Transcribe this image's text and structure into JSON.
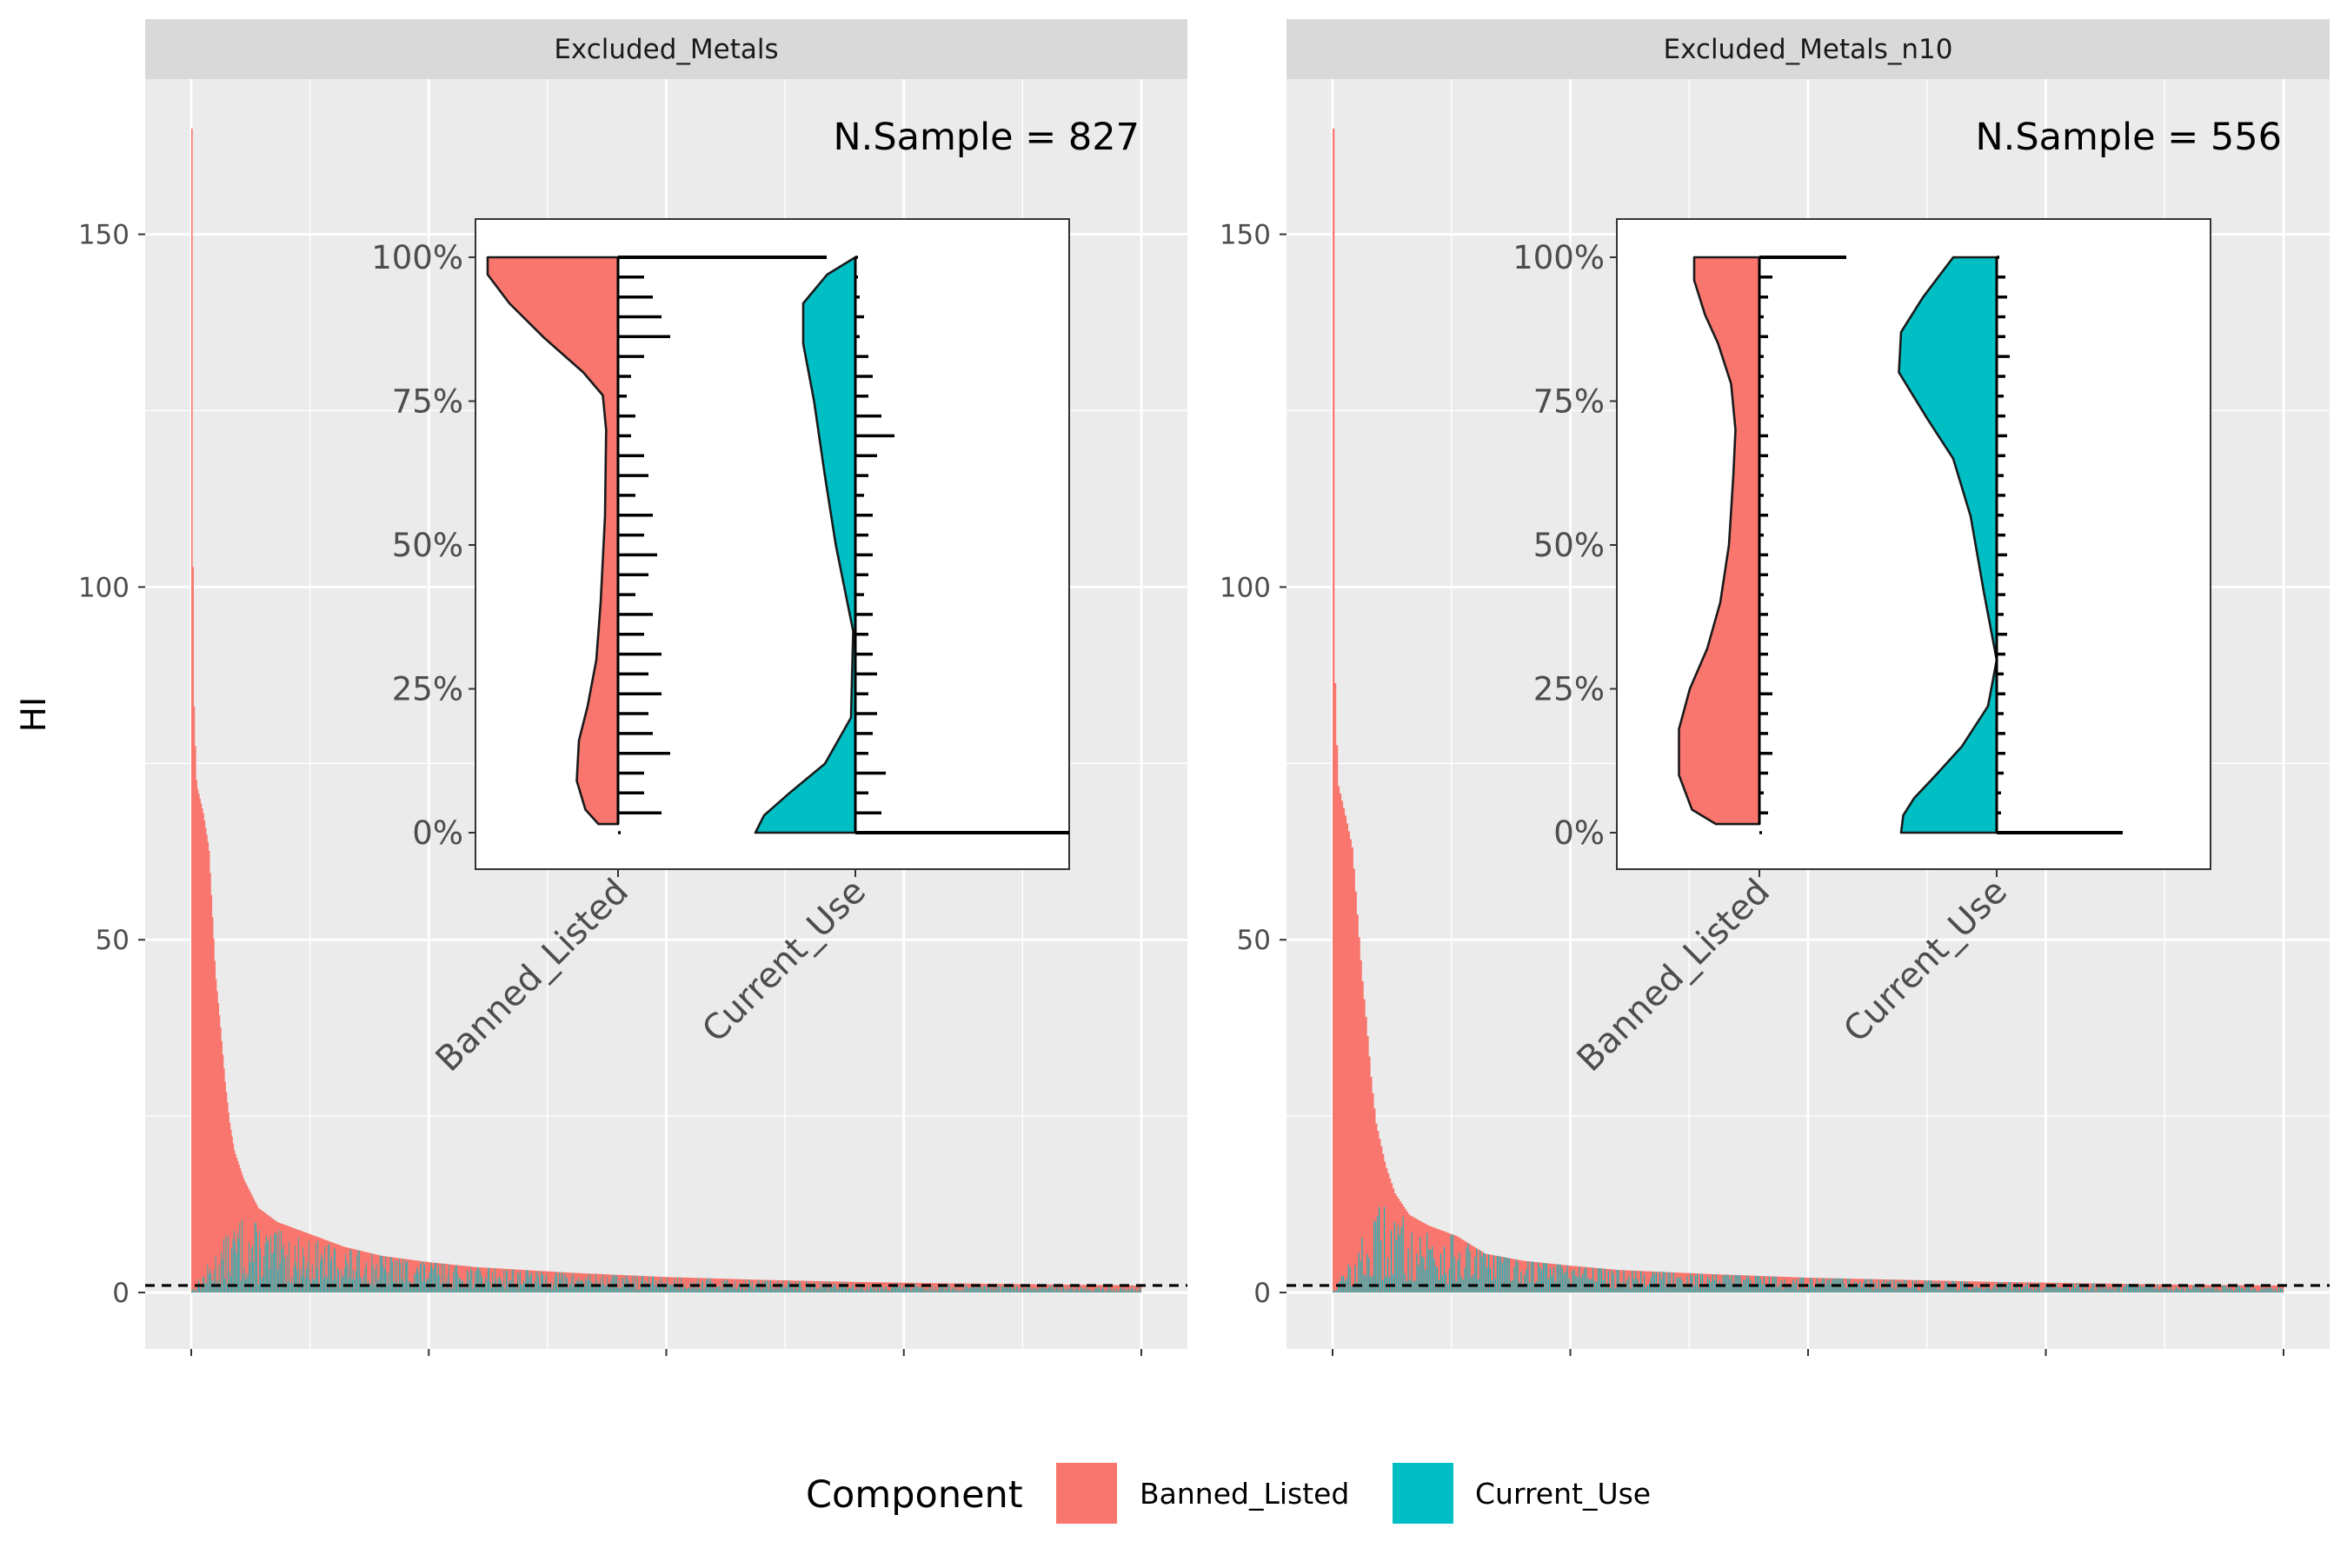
{
  "chart_data": {
    "type": "bar",
    "ylabel": "HI",
    "y_ticks": [
      0,
      50,
      100,
      150
    ],
    "ylim": [
      -8,
      172
    ],
    "reference_line": {
      "y": 1,
      "style": "dashed",
      "color": "#000000"
    },
    "legend": {
      "title": "Component",
      "position": "bottom",
      "entries": [
        {
          "label": "Banned_Listed",
          "color": "#F8766D"
        },
        {
          "label": "Current_Use",
          "color": "#00BFC4"
        }
      ]
    },
    "panels": [
      {
        "strip": "Excluded_Metals",
        "annotation": "N.Sample = 827",
        "n": 827,
        "series": [
          {
            "name": "Banned_Listed",
            "color": "#F8766D",
            "profile": [
              [
                0,
                165
              ],
              [
                0.0015,
                88
              ],
              [
                0.003,
                80
              ],
              [
                0.005,
                72
              ],
              [
                0.012,
                68
              ],
              [
                0.018,
                63
              ],
              [
                0.025,
                45
              ],
              [
                0.03,
                38
              ],
              [
                0.035,
                30
              ],
              [
                0.04,
                24
              ],
              [
                0.045,
                20
              ],
              [
                0.055,
                16
              ],
              [
                0.07,
                12
              ],
              [
                0.09,
                10
              ],
              [
                0.12,
                8.5
              ],
              [
                0.16,
                6.5
              ],
              [
                0.2,
                5.2
              ],
              [
                0.25,
                4.3
              ],
              [
                0.3,
                3.6
              ],
              [
                0.4,
                2.8
              ],
              [
                0.5,
                2.2
              ],
              [
                0.6,
                1.8
              ],
              [
                0.7,
                1.5
              ],
              [
                0.8,
                1.3
              ],
              [
                0.9,
                1.15
              ],
              [
                1.0,
                1.0
              ]
            ]
          },
          {
            "name": "Current_Use",
            "color": "#00BFC4",
            "profile": [
              [
                0,
                0.3
              ],
              [
                0.05,
                8
              ],
              [
                0.1,
                6
              ],
              [
                0.15,
                5
              ],
              [
                0.25,
                3.5
              ],
              [
                0.4,
                2.3
              ],
              [
                0.6,
                1.4
              ],
              [
                0.8,
                0.9
              ],
              [
                1.0,
                0.6
              ]
            ]
          }
        ],
        "inset": {
          "type": "half-violin with quantile ticks",
          "y_ticks": [
            "0%",
            "25%",
            "50%",
            "75%",
            "100%"
          ],
          "categories": [
            "Banned_Listed",
            "Current_Use"
          ],
          "violins": [
            {
              "name": "Banned_Listed",
              "color": "#F8766D",
              "side": "left",
              "ymin": 0.015,
              "ymax": 1.0,
              "density": [
                [
                  0.015,
                  0.09
                ],
                [
                  0.04,
                  0.15
                ],
                [
                  0.09,
                  0.19
                ],
                [
                  0.16,
                  0.18
                ],
                [
                  0.22,
                  0.14
                ],
                [
                  0.3,
                  0.1
                ],
                [
                  0.4,
                  0.08
                ],
                [
                  0.55,
                  0.06
                ],
                [
                  0.7,
                  0.055
                ],
                [
                  0.76,
                  0.07
                ],
                [
                  0.8,
                  0.16
                ],
                [
                  0.86,
                  0.34
                ],
                [
                  0.92,
                  0.5
                ],
                [
                  0.97,
                  0.6
                ],
                [
                  1.0,
                  0.6
                ]
              ]
            },
            {
              "name": "Current_Use",
              "color": "#00BFC4",
              "side": "left",
              "ymin": 0.0,
              "ymax": 1.0,
              "density": [
                [
                  0.0,
                  0.46
                ],
                [
                  0.03,
                  0.42
                ],
                [
                  0.07,
                  0.3
                ],
                [
                  0.12,
                  0.14
                ],
                [
                  0.2,
                  0.02
                ],
                [
                  0.35,
                  0.01
                ],
                [
                  0.5,
                  0.09
                ],
                [
                  0.62,
                  0.14
                ],
                [
                  0.75,
                  0.19
                ],
                [
                  0.85,
                  0.24
                ],
                [
                  0.92,
                  0.24
                ],
                [
                  0.97,
                  0.13
                ],
                [
                  1.0,
                  0.0
                ]
              ]
            }
          ],
          "quantile_ticks": [
            [
              0.0,
              0.5,
              0.3,
              0.3,
              0.6,
              0.4,
              0.35,
              0.5,
              0.35,
              0.5,
              0.3,
              0.4,
              0.2,
              0.35,
              0.45,
              0.3,
              0.4,
              0.2,
              0.35,
              0.3,
              0.15,
              0.2,
              0.1,
              0.15,
              0.3,
              0.6,
              0.5,
              0.4,
              0.3,
              0.2
            ],
            [
              1.0,
              0.3,
              0.15,
              0.35,
              0.15,
              0.2,
              0.25,
              0.15,
              0.25,
              0.2,
              0.15,
              0.2,
              0.1,
              0.15,
              0.2,
              0.15,
              0.2,
              0.1,
              0.15,
              0.25,
              0.45,
              0.3,
              0.15,
              0.2,
              0.15,
              0.05,
              0.1,
              0.05,
              0.0,
              0.0
            ]
          ],
          "end_lines": [
            {
              "y": 1.0,
              "from": 0,
              "to": 2.4
            },
            {
              "y": 0.0,
              "from": 1,
              "to": 3.0
            }
          ]
        }
      },
      {
        "strip": "Excluded_Metals_n10",
        "annotation": "N.Sample = 556",
        "n": 556,
        "series": [
          {
            "name": "Banned_Listed",
            "color": "#F8766D",
            "profile": [
              [
                0,
                165
              ],
              [
                0.0015,
                88
              ],
              [
                0.003,
                80
              ],
              [
                0.005,
                72
              ],
              [
                0.012,
                68
              ],
              [
                0.02,
                63
              ],
              [
                0.03,
                45
              ],
              [
                0.035,
                38
              ],
              [
                0.04,
                30
              ],
              [
                0.045,
                24
              ],
              [
                0.055,
                18
              ],
              [
                0.065,
                14
              ],
              [
                0.08,
                11
              ],
              [
                0.1,
                9.5
              ],
              [
                0.13,
                8
              ],
              [
                0.16,
                5.5
              ],
              [
                0.2,
                4.5
              ],
              [
                0.25,
                3.8
              ],
              [
                0.3,
                3.2
              ],
              [
                0.4,
                2.6
              ],
              [
                0.5,
                2.1
              ],
              [
                0.6,
                1.8
              ],
              [
                0.7,
                1.5
              ],
              [
                0.8,
                1.3
              ],
              [
                0.9,
                1.1
              ],
              [
                1.0,
                1.0
              ]
            ]
          },
          {
            "name": "Current_Use",
            "color": "#00BFC4",
            "profile": [
              [
                0,
                0.3
              ],
              [
                0.05,
                9
              ],
              [
                0.1,
                7
              ],
              [
                0.15,
                5.5
              ],
              [
                0.25,
                4
              ],
              [
                0.4,
                2.6
              ],
              [
                0.6,
                1.6
              ],
              [
                0.8,
                1.1
              ],
              [
                1.0,
                0.8
              ]
            ]
          }
        ],
        "inset": {
          "type": "half-violin with quantile ticks",
          "y_ticks": [
            "0%",
            "25%",
            "50%",
            "75%",
            "100%"
          ],
          "categories": [
            "Banned_Listed",
            "Current_Use"
          ],
          "violins": [
            {
              "name": "Banned_Listed",
              "color": "#F8766D",
              "side": "left",
              "ymin": 0.015,
              "ymax": 1.0,
              "density": [
                [
                  0.015,
                  0.2
                ],
                [
                  0.04,
                  0.31
                ],
                [
                  0.1,
                  0.37
                ],
                [
                  0.18,
                  0.37
                ],
                [
                  0.25,
                  0.32
                ],
                [
                  0.32,
                  0.24
                ],
                [
                  0.4,
                  0.18
                ],
                [
                  0.5,
                  0.14
                ],
                [
                  0.62,
                  0.12
                ],
                [
                  0.7,
                  0.11
                ],
                [
                  0.78,
                  0.13
                ],
                [
                  0.85,
                  0.19
                ],
                [
                  0.9,
                  0.25
                ],
                [
                  0.96,
                  0.3
                ],
                [
                  1.0,
                  0.3
                ]
              ]
            },
            {
              "name": "Current_Use",
              "color": "#00BFC4",
              "side": "left",
              "ymin": 0.0,
              "ymax": 1.0,
              "density": [
                [
                  0.0,
                  0.44
                ],
                [
                  0.03,
                  0.43
                ],
                [
                  0.06,
                  0.38
                ],
                [
                  0.1,
                  0.28
                ],
                [
                  0.15,
                  0.16
                ],
                [
                  0.22,
                  0.04
                ],
                [
                  0.3,
                  0.0
                ],
                [
                  0.42,
                  0.06
                ],
                [
                  0.55,
                  0.12
                ],
                [
                  0.65,
                  0.2
                ],
                [
                  0.72,
                  0.32
                ],
                [
                  0.8,
                  0.45
                ],
                [
                  0.87,
                  0.44
                ],
                [
                  0.93,
                  0.34
                ],
                [
                  1.0,
                  0.2
                ]
              ]
            }
          ],
          "quantile_ticks": [
            [
              0.0,
              0.1,
              0.05,
              0.1,
              0.15,
              0.1,
              0.1,
              0.15,
              0.1,
              0.1,
              0.1,
              0.1,
              0.05,
              0.1,
              0.1,
              0.05,
              0.1,
              0.05,
              0.05,
              0.1,
              0.1,
              0.05,
              0.05,
              0.05,
              0.05,
              0.1,
              0.05,
              0.1,
              0.15,
              0.5
            ],
            [
              0.45,
              0.05,
              0.05,
              0.08,
              0.1,
              0.1,
              0.08,
              0.1,
              0.08,
              0.1,
              0.12,
              0.08,
              0.1,
              0.08,
              0.12,
              0.1,
              0.08,
              0.1,
              0.08,
              0.1,
              0.12,
              0.1,
              0.08,
              0.1,
              0.15,
              0.1,
              0.1,
              0.12,
              0.1,
              0.0
            ]
          ],
          "end_lines": [
            {
              "y": 1.0,
              "from": 0,
              "to": 1.0
            },
            {
              "y": 0.0,
              "from": 1,
              "to": 1.45
            }
          ]
        }
      }
    ]
  }
}
